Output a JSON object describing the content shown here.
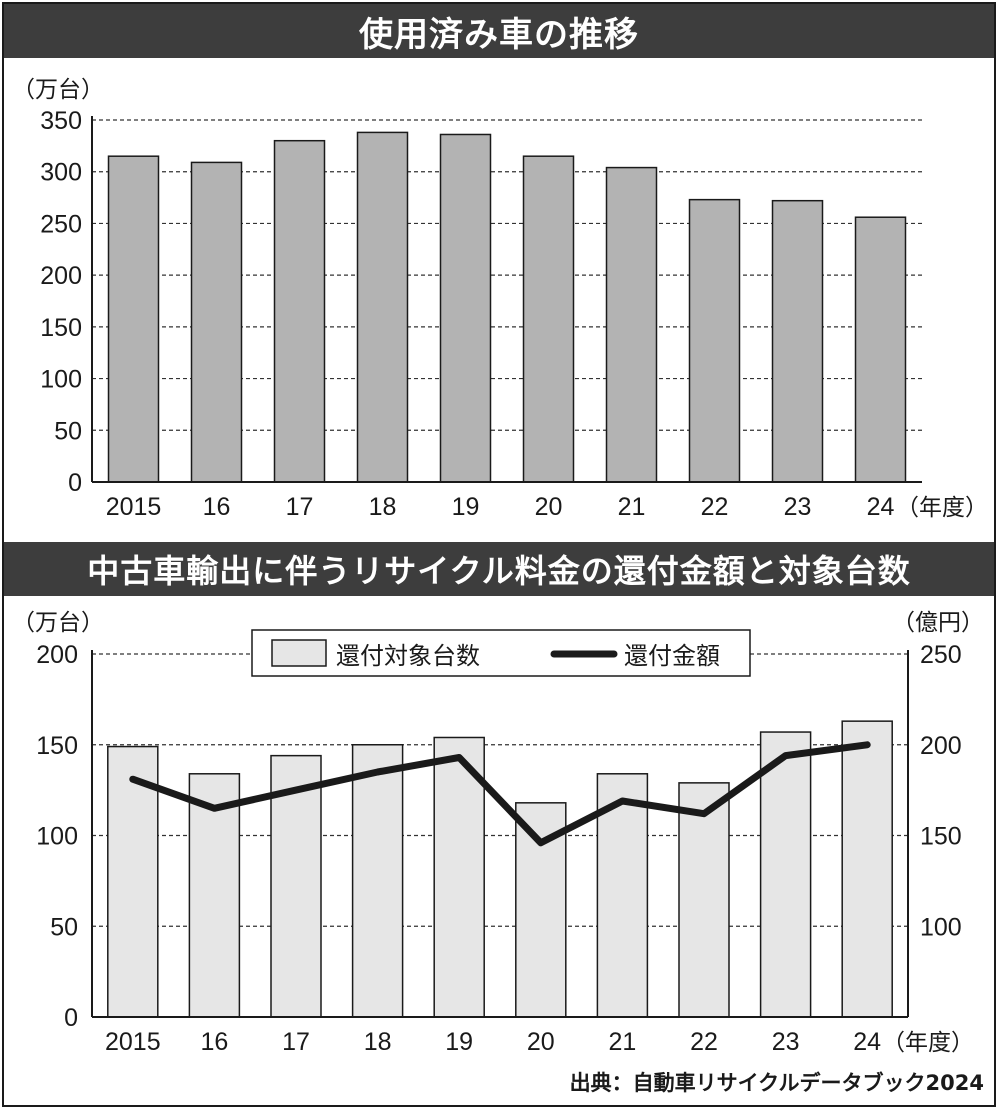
{
  "chart_data": [
    {
      "type": "bar",
      "title": "使用済み車の推移",
      "ylabel": "（万台）",
      "xlabel": "（年度）",
      "categories": [
        "2015",
        "16",
        "17",
        "18",
        "19",
        "20",
        "21",
        "22",
        "23",
        "24"
      ],
      "values": [
        315,
        309,
        330,
        338,
        336,
        315,
        304,
        273,
        272,
        256
      ],
      "ylim": [
        0,
        350
      ],
      "yticks": [
        0,
        50,
        100,
        150,
        200,
        250,
        300,
        350
      ],
      "grid": "dashed-horizontal",
      "bar_color": "#b3b3b3"
    },
    {
      "type": "bar+line",
      "title": "中古車輸出に伴うリサイクル料金の還付金額と対象台数",
      "ylabel": "（万台）",
      "y2label": "（億円）",
      "xlabel": "（年度）",
      "categories": [
        "2015",
        "16",
        "17",
        "18",
        "19",
        "20",
        "21",
        "22",
        "23",
        "24"
      ],
      "series": [
        {
          "name": "還付対象台数",
          "kind": "bar",
          "axis": "left",
          "values": [
            149,
            134,
            144,
            150,
            154,
            118,
            134,
            129,
            157,
            163
          ],
          "color": "#e6e6e6"
        },
        {
          "name": "還付金額",
          "kind": "line",
          "axis": "right",
          "values": [
            181,
            165,
            175,
            185,
            193,
            146,
            169,
            162,
            194,
            200
          ],
          "color": "#1a1a1a"
        }
      ],
      "ylim": [
        0,
        200
      ],
      "yticks": [
        0,
        50,
        100,
        150,
        200
      ],
      "y2lim": [
        50,
        250
      ],
      "y2ticks": [
        100,
        150,
        200,
        250
      ],
      "legend": "top-center",
      "grid": "dashed-horizontal"
    }
  ],
  "source": "出典：自動車リサイクルデータブック2024"
}
